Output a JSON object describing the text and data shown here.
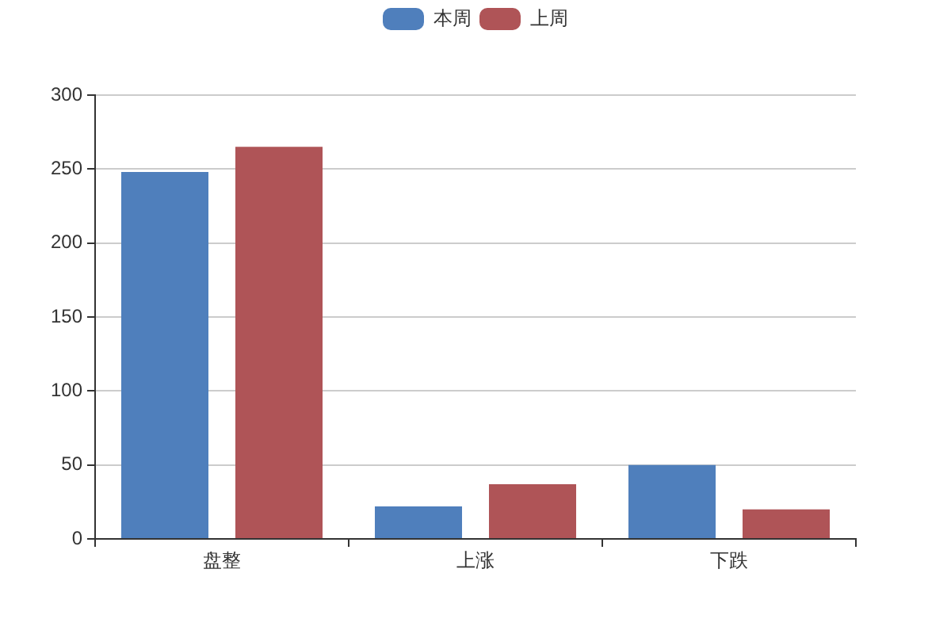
{
  "chart_data": {
    "type": "bar",
    "categories": [
      "盘整",
      "上涨",
      "下跌"
    ],
    "series": [
      {
        "name": "本周",
        "color": "#4f7fbc",
        "values": [
          248,
          22,
          50
        ]
      },
      {
        "name": "上周",
        "color": "#af5457",
        "values": [
          265,
          37,
          20
        ]
      }
    ],
    "ylim": [
      0,
      300
    ],
    "yticks": [
      0,
      50,
      100,
      150,
      200,
      250,
      300
    ],
    "grid": "y",
    "legend": "top"
  }
}
